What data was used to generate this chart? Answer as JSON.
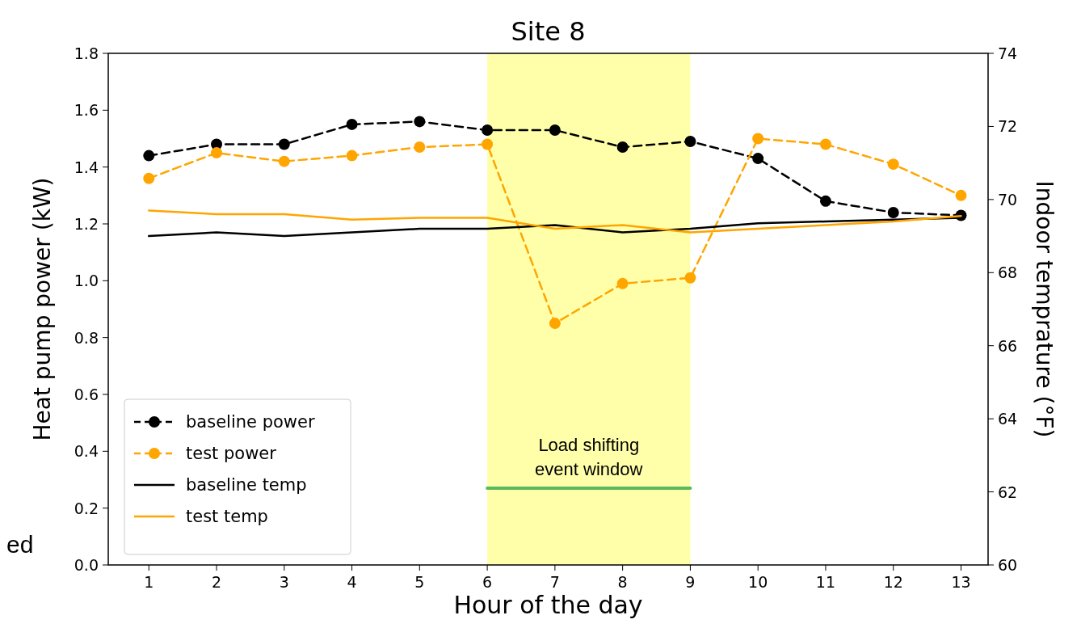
{
  "chart_data": {
    "type": "line",
    "title": "Site 8",
    "xlabel": "Hour of the day",
    "ylabel": "Heat pump power (kW)",
    "y2label": "Indoor temprature (°F)",
    "x": [
      1,
      2,
      3,
      4,
      5,
      6,
      7,
      8,
      9,
      10,
      11,
      12,
      13
    ],
    "xlim": [
      0.4,
      13.4
    ],
    "xticks": [
      1,
      2,
      3,
      4,
      5,
      6,
      7,
      8,
      9,
      10,
      11,
      12,
      13
    ],
    "ylim": [
      0,
      1.8
    ],
    "yticks": [
      {
        "value": 0,
        "label": "0.0"
      },
      0.2,
      0.4,
      0.6,
      0.8,
      {
        "value": 1,
        "label": "1.0"
      },
      1.2,
      1.4,
      1.6,
      1.8
    ],
    "y2lim": [
      60,
      74
    ],
    "y2ticks": [
      60,
      62,
      64,
      66,
      68,
      70,
      72,
      74
    ],
    "series": [
      {
        "name": "baseline power",
        "color": "#000000",
        "marker": "circle",
        "line_style": "dashed",
        "values": [
          1.44,
          1.48,
          1.48,
          1.55,
          1.56,
          1.53,
          1.53,
          1.47,
          1.49,
          1.43,
          1.28,
          1.24,
          1.23
        ]
      },
      {
        "name": "test power",
        "color": "#ffa500",
        "marker": "circle",
        "line_style": "dashed",
        "values": [
          1.36,
          1.45,
          1.42,
          1.44,
          1.47,
          1.48,
          0.85,
          0.99,
          1.01,
          1.5,
          1.48,
          1.41,
          1.3
        ]
      },
      {
        "name": "baseline temp",
        "color": "#000000",
        "marker": "none",
        "line_style": "solid",
        "axis": "y2",
        "values": [
          69.0,
          69.1,
          69.0,
          69.1,
          69.2,
          69.2,
          69.3,
          69.1,
          69.2,
          69.35,
          69.4,
          69.45,
          69.5
        ]
      },
      {
        "name": "test temp",
        "color": "#ffa500",
        "marker": "none",
        "line_style": "solid",
        "axis": "y2",
        "values": [
          69.7,
          69.6,
          69.6,
          69.45,
          69.5,
          69.5,
          69.2,
          69.3,
          69.1,
          69.2,
          69.3,
          69.4,
          69.55
        ]
      },
      {
        "color": "#5cb85c",
        "marker": "none",
        "line_style": "solid",
        "x": [
          6,
          9
        ],
        "values": [
          0.27,
          0.27
        ]
      }
    ],
    "bands": [
      {
        "axis": "x",
        "from": 6,
        "to": 9,
        "label": "Load shifting event window",
        "color": "#ffffaa"
      }
    ],
    "annotations": [
      "ed"
    ],
    "grid": false,
    "legend": "bottom left"
  }
}
